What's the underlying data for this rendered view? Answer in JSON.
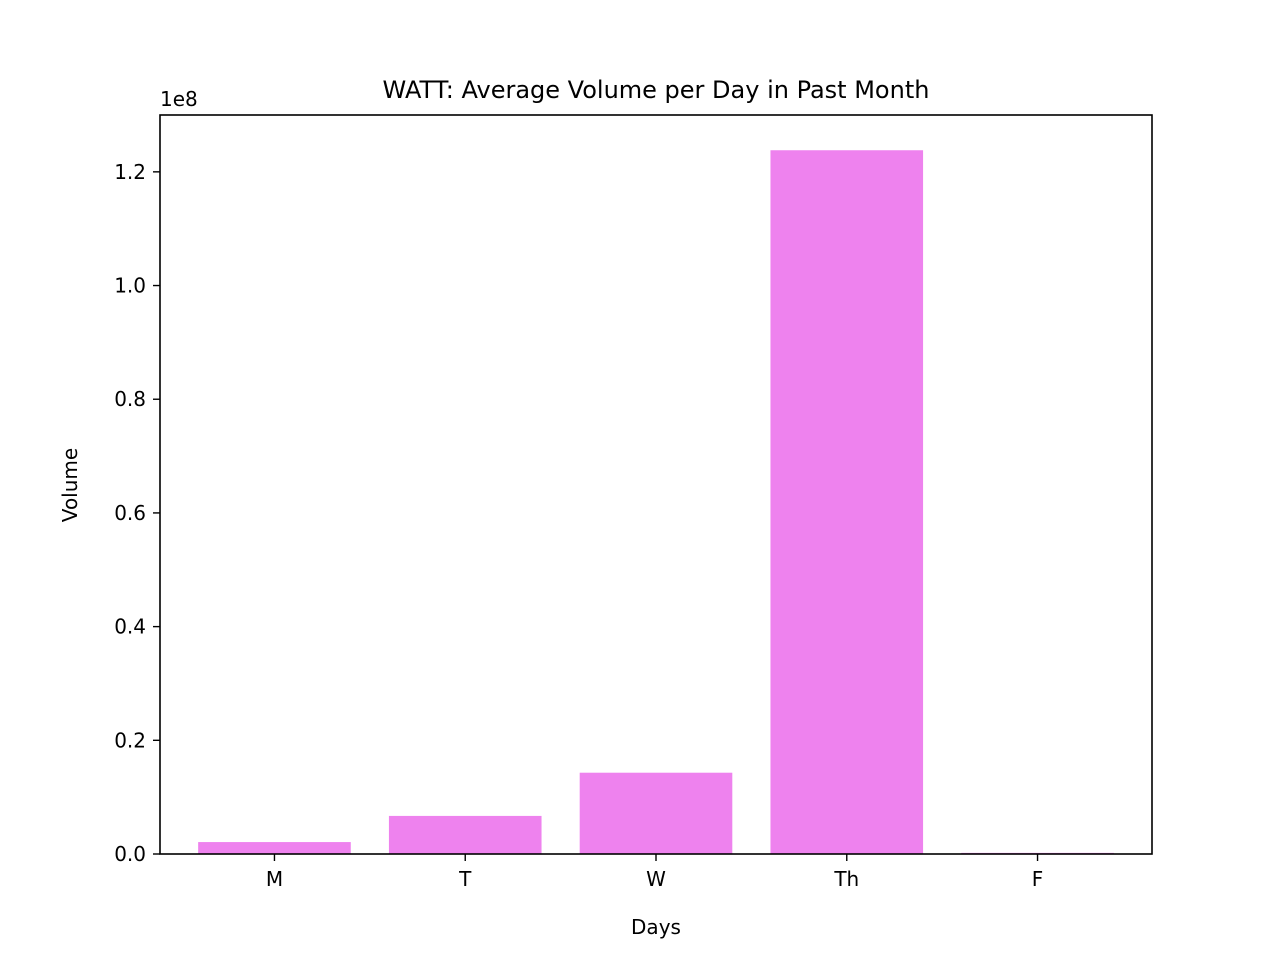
{
  "chart_data": {
    "type": "bar",
    "title": "WATT: Average Volume per Day in Past Month",
    "xlabel": "Days",
    "ylabel": "Volume",
    "categories": [
      "M",
      "T",
      "W",
      "Th",
      "F"
    ],
    "values": [
      2100000,
      6700000,
      14300000,
      123800000,
      200000
    ],
    "ylim": [
      0,
      130000000
    ],
    "yticks": [
      0,
      20000000,
      40000000,
      60000000,
      80000000,
      100000000,
      120000000
    ],
    "ytick_labels": [
      "0.0",
      "0.2",
      "0.4",
      "0.6",
      "0.8",
      "1.0",
      "1.2"
    ],
    "y_offset_label": "1e8",
    "bar_color": "#ee82ee",
    "grid": false,
    "legend": "none"
  }
}
